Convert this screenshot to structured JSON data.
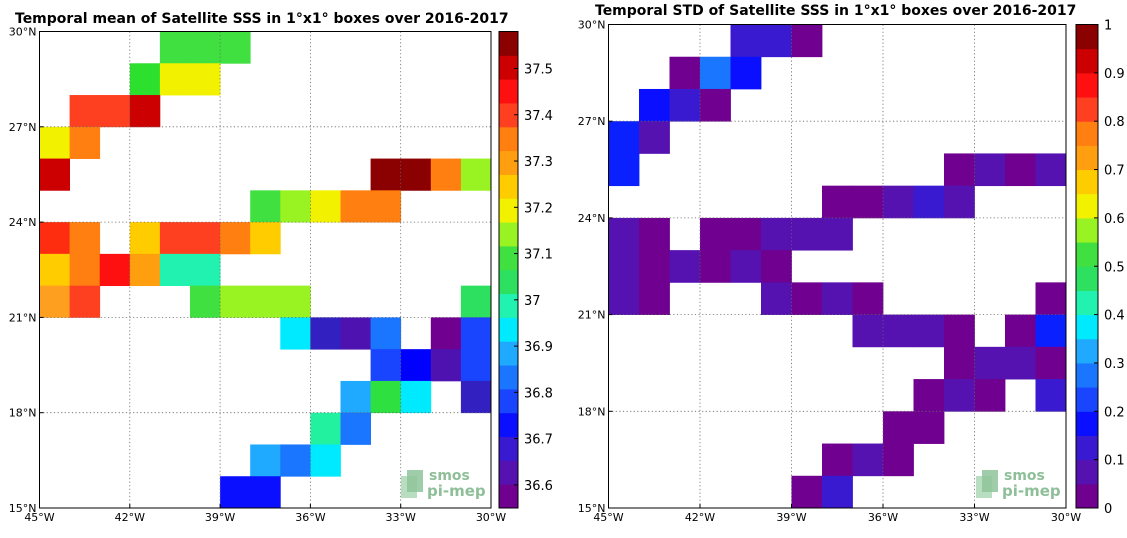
{
  "panels": [
    {
      "title": "Temporal mean of Satellite SSS in 1°x1° boxes over 2016-2017",
      "lon_range": [
        -45,
        -30
      ],
      "lat_range": [
        15,
        30
      ],
      "lon_ticks": [
        "45°W",
        "42°W",
        "39°W",
        "36°W",
        "33°W",
        "30°W"
      ],
      "lat_ticks": [
        "15°N",
        "18°N",
        "21°N",
        "24°N",
        "27°N",
        "30°N"
      ],
      "logo": {
        "line1": "smos",
        "line2": "pi-mep"
      },
      "colorbar": {
        "range": [
          36.55,
          37.58
        ],
        "tick_values": [
          36.6,
          36.7,
          36.8,
          36.9,
          37,
          37.1,
          37.2,
          37.3,
          37.4,
          37.5
        ],
        "tick_labels": [
          "36.6",
          "36.7",
          "36.8",
          "36.9",
          "37",
          "37.1",
          "37.2",
          "37.3",
          "37.4",
          "37.5"
        ]
      },
      "cells": [
        {
          "lon": -41,
          "lat": 29,
          "color": "#40e040"
        },
        {
          "lon": -40,
          "lat": 29,
          "color": "#40e040"
        },
        {
          "lon": -39,
          "lat": 29,
          "color": "#40e040"
        },
        {
          "lon": -42,
          "lat": 28,
          "color": "#2ee02e"
        },
        {
          "lon": -41,
          "lat": 28,
          "color": "#f2f200"
        },
        {
          "lon": -40,
          "lat": 28,
          "color": "#f2f200"
        },
        {
          "lon": -44,
          "lat": 27,
          "color": "#ff4020"
        },
        {
          "lon": -43,
          "lat": 27,
          "color": "#ff4020"
        },
        {
          "lon": -42,
          "lat": 27,
          "color": "#cc0000"
        },
        {
          "lon": -45,
          "lat": 26,
          "color": "#f2f200"
        },
        {
          "lon": -44,
          "lat": 26,
          "color": "#ff7f10"
        },
        {
          "lon": -45,
          "lat": 25,
          "color": "#cc0000"
        },
        {
          "lon": -34,
          "lat": 25,
          "color": "#8b0000"
        },
        {
          "lon": -33,
          "lat": 25,
          "color": "#8b0000"
        },
        {
          "lon": -32,
          "lat": 25,
          "color": "#ff7f10"
        },
        {
          "lon": -31,
          "lat": 25,
          "color": "#99f222"
        },
        {
          "lon": -38,
          "lat": 24,
          "color": "#40e040"
        },
        {
          "lon": -37,
          "lat": 24,
          "color": "#99f222"
        },
        {
          "lon": -36,
          "lat": 24,
          "color": "#f2f200"
        },
        {
          "lon": -35,
          "lat": 24,
          "color": "#ff7f10"
        },
        {
          "lon": -34,
          "lat": 24,
          "color": "#ff7f10"
        },
        {
          "lon": -45,
          "lat": 23,
          "color": "#ff2d10"
        },
        {
          "lon": -44,
          "lat": 23,
          "color": "#ff7f10"
        },
        {
          "lon": -42,
          "lat": 23,
          "color": "#ffcc00"
        },
        {
          "lon": -41,
          "lat": 23,
          "color": "#ff4020"
        },
        {
          "lon": -40,
          "lat": 23,
          "color": "#ff4020"
        },
        {
          "lon": -39,
          "lat": 23,
          "color": "#ff7f10"
        },
        {
          "lon": -38,
          "lat": 23,
          "color": "#ffcc00"
        },
        {
          "lon": -45,
          "lat": 22,
          "color": "#ffcc00"
        },
        {
          "lon": -44,
          "lat": 22,
          "color": "#ff7f10"
        },
        {
          "lon": -43,
          "lat": 22,
          "color": "#ff1010"
        },
        {
          "lon": -42,
          "lat": 22,
          "color": "#ff9f10"
        },
        {
          "lon": -41,
          "lat": 22,
          "color": "#22f2b0"
        },
        {
          "lon": -40,
          "lat": 22,
          "color": "#22f2b0"
        },
        {
          "lon": -45,
          "lat": 21,
          "color": "#ff9f20"
        },
        {
          "lon": -44,
          "lat": 21,
          "color": "#ff4020"
        },
        {
          "lon": -40,
          "lat": 21,
          "color": "#40e040"
        },
        {
          "lon": -39,
          "lat": 21,
          "color": "#99f222"
        },
        {
          "lon": -38,
          "lat": 21,
          "color": "#99f222"
        },
        {
          "lon": -37,
          "lat": 21,
          "color": "#99f222"
        },
        {
          "lon": -31,
          "lat": 21,
          "color": "#2ee060"
        },
        {
          "lon": -37,
          "lat": 20,
          "color": "#00eaff"
        },
        {
          "lon": -36,
          "lat": 20,
          "color": "#3320c0"
        },
        {
          "lon": -35,
          "lat": 20,
          "color": "#4d12b0"
        },
        {
          "lon": -34,
          "lat": 20,
          "color": "#1a75ff"
        },
        {
          "lon": -32,
          "lat": 20,
          "color": "#700090"
        },
        {
          "lon": -31,
          "lat": 20,
          "color": "#1a45ff"
        },
        {
          "lon": -34,
          "lat": 19,
          "color": "#1a45ff"
        },
        {
          "lon": -33,
          "lat": 19,
          "color": "#0000ff"
        },
        {
          "lon": -32,
          "lat": 19,
          "color": "#4d12b0"
        },
        {
          "lon": -31,
          "lat": 19,
          "color": "#1a45ff"
        },
        {
          "lon": -35,
          "lat": 18,
          "color": "#20aaff"
        },
        {
          "lon": -34,
          "lat": 18,
          "color": "#2ee040"
        },
        {
          "lon": -33,
          "lat": 18,
          "color": "#00eaff"
        },
        {
          "lon": -31,
          "lat": 18,
          "color": "#3320c0"
        },
        {
          "lon": -36,
          "lat": 17,
          "color": "#22f2a0"
        },
        {
          "lon": -35,
          "lat": 17,
          "color": "#1a75ff"
        },
        {
          "lon": -38,
          "lat": 16,
          "color": "#20aaff"
        },
        {
          "lon": -37,
          "lat": 16,
          "color": "#1a75ff"
        },
        {
          "lon": -36,
          "lat": 16,
          "color": "#00eaff"
        },
        {
          "lon": -39,
          "lat": 15,
          "color": "#0a10ff"
        },
        {
          "lon": -38,
          "lat": 15,
          "color": "#0a10ff"
        }
      ]
    },
    {
      "title": "Temporal STD of Satellite SSS in 1°x1° boxes over 2016-2017",
      "lon_range": [
        -45,
        -30
      ],
      "lat_range": [
        15,
        30
      ],
      "lon_ticks": [
        "45°W",
        "42°W",
        "39°W",
        "36°W",
        "33°W",
        "30°W"
      ],
      "lat_ticks": [
        "15°N",
        "18°N",
        "21°N",
        "24°N",
        "27°N",
        "30°N"
      ],
      "logo": {
        "line1": "smos",
        "line2": "pi-mep"
      },
      "colorbar": {
        "range": [
          0,
          1
        ],
        "tick_values": [
          0,
          0.1,
          0.2,
          0.3,
          0.4,
          0.5,
          0.6,
          0.7,
          0.8,
          0.9,
          1
        ],
        "tick_labels": [
          "0",
          "0.1",
          "0.2",
          "0.3",
          "0.4",
          "0.5",
          "0.6",
          "0.7",
          "0.8",
          "0.9",
          "1"
        ]
      },
      "cells": [
        {
          "lon": -41,
          "lat": 29,
          "color": "#3a1ad0"
        },
        {
          "lon": -40,
          "lat": 29,
          "color": "#3a1ad0"
        },
        {
          "lon": -39,
          "lat": 29,
          "color": "#700090"
        },
        {
          "lon": -43,
          "lat": 28,
          "color": "#700090"
        },
        {
          "lon": -42,
          "lat": 28,
          "color": "#1a75ff"
        },
        {
          "lon": -41,
          "lat": 28,
          "color": "#0a10ff"
        },
        {
          "lon": -44,
          "lat": 27,
          "color": "#0a10ff"
        },
        {
          "lon": -43,
          "lat": 27,
          "color": "#3a1ad0"
        },
        {
          "lon": -42,
          "lat": 27,
          "color": "#700090"
        },
        {
          "lon": -45,
          "lat": 26,
          "color": "#0a20ff"
        },
        {
          "lon": -44,
          "lat": 26,
          "color": "#5512b0"
        },
        {
          "lon": -45,
          "lat": 25,
          "color": "#0a20ff"
        },
        {
          "lon": -34,
          "lat": 25,
          "color": "#700090"
        },
        {
          "lon": -33,
          "lat": 25,
          "color": "#5512b0"
        },
        {
          "lon": -32,
          "lat": 25,
          "color": "#700090"
        },
        {
          "lon": -31,
          "lat": 25,
          "color": "#5512b0"
        },
        {
          "lon": -38,
          "lat": 24,
          "color": "#700090"
        },
        {
          "lon": -37,
          "lat": 24,
          "color": "#700090"
        },
        {
          "lon": -36,
          "lat": 24,
          "color": "#5512b0"
        },
        {
          "lon": -35,
          "lat": 24,
          "color": "#3a1ad0"
        },
        {
          "lon": -34,
          "lat": 24,
          "color": "#5512b0"
        },
        {
          "lon": -45,
          "lat": 23,
          "color": "#5512b0"
        },
        {
          "lon": -44,
          "lat": 23,
          "color": "#700090"
        },
        {
          "lon": -42,
          "lat": 23,
          "color": "#700090"
        },
        {
          "lon": -41,
          "lat": 23,
          "color": "#700090"
        },
        {
          "lon": -40,
          "lat": 23,
          "color": "#5512b0"
        },
        {
          "lon": -39,
          "lat": 23,
          "color": "#5512b0"
        },
        {
          "lon": -38,
          "lat": 23,
          "color": "#5512b0"
        },
        {
          "lon": -45,
          "lat": 22,
          "color": "#5512b0"
        },
        {
          "lon": -44,
          "lat": 22,
          "color": "#700090"
        },
        {
          "lon": -43,
          "lat": 22,
          "color": "#5512b0"
        },
        {
          "lon": -42,
          "lat": 22,
          "color": "#700090"
        },
        {
          "lon": -41,
          "lat": 22,
          "color": "#5512b0"
        },
        {
          "lon": -40,
          "lat": 22,
          "color": "#700090"
        },
        {
          "lon": -45,
          "lat": 21,
          "color": "#5512b0"
        },
        {
          "lon": -44,
          "lat": 21,
          "color": "#700090"
        },
        {
          "lon": -40,
          "lat": 21,
          "color": "#5512b0"
        },
        {
          "lon": -39,
          "lat": 21,
          "color": "#700090"
        },
        {
          "lon": -38,
          "lat": 21,
          "color": "#5512b0"
        },
        {
          "lon": -37,
          "lat": 21,
          "color": "#700090"
        },
        {
          "lon": -31,
          "lat": 21,
          "color": "#700090"
        },
        {
          "lon": -37,
          "lat": 20,
          "color": "#5512b0"
        },
        {
          "lon": -36,
          "lat": 20,
          "color": "#5512b0"
        },
        {
          "lon": -35,
          "lat": 20,
          "color": "#5512b0"
        },
        {
          "lon": -34,
          "lat": 20,
          "color": "#700090"
        },
        {
          "lon": -32,
          "lat": 20,
          "color": "#700090"
        },
        {
          "lon": -31,
          "lat": 20,
          "color": "#0a20ff"
        },
        {
          "lon": -34,
          "lat": 19,
          "color": "#700090"
        },
        {
          "lon": -33,
          "lat": 19,
          "color": "#5512b0"
        },
        {
          "lon": -32,
          "lat": 19,
          "color": "#5512b0"
        },
        {
          "lon": -31,
          "lat": 19,
          "color": "#700090"
        },
        {
          "lon": -35,
          "lat": 18,
          "color": "#700090"
        },
        {
          "lon": -34,
          "lat": 18,
          "color": "#5512b0"
        },
        {
          "lon": -33,
          "lat": 18,
          "color": "#700090"
        },
        {
          "lon": -31,
          "lat": 18,
          "color": "#3a1ad0"
        },
        {
          "lon": -36,
          "lat": 17,
          "color": "#700090"
        },
        {
          "lon": -35,
          "lat": 17,
          "color": "#700090"
        },
        {
          "lon": -38,
          "lat": 16,
          "color": "#700090"
        },
        {
          "lon": -37,
          "lat": 16,
          "color": "#5512b0"
        },
        {
          "lon": -36,
          "lat": 16,
          "color": "#700090"
        },
        {
          "lon": -39,
          "lat": 15,
          "color": "#700090"
        },
        {
          "lon": -38,
          "lat": 15,
          "color": "#3a1ad0"
        }
      ]
    }
  ],
  "colormap": [
    "#700090",
    "#5512b0",
    "#3a1ad0",
    "#0a10ff",
    "#1a45ff",
    "#1a75ff",
    "#20aaff",
    "#00eaff",
    "#22f2b0",
    "#2ee060",
    "#40e040",
    "#99f222",
    "#f2f200",
    "#ffcc00",
    "#ff9f10",
    "#ff7f10",
    "#ff4020",
    "#ff1010",
    "#cc0000",
    "#8b0000"
  ]
}
